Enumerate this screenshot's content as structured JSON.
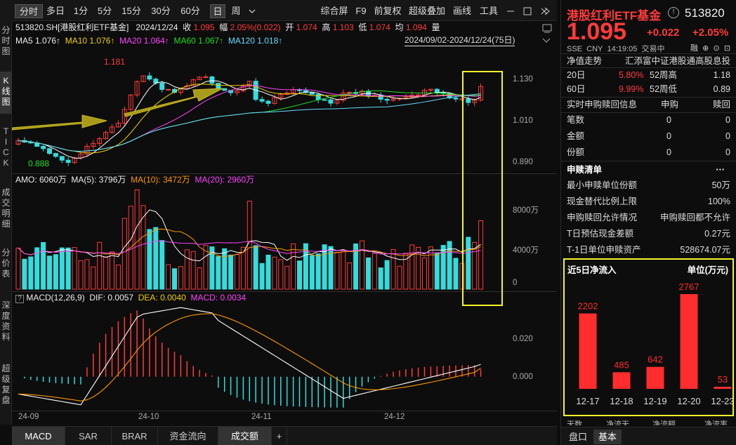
{
  "left_nav": [
    {
      "label": "分\n时\n图",
      "active": false
    },
    {
      "label": "K\n线\n图",
      "active": true
    },
    {
      "label": "T\nI\nC\nK",
      "active": false
    },
    {
      "label": "成\n交\n明\n细",
      "active": false
    },
    {
      "label": "分\n价\n表",
      "active": false
    },
    {
      "label": "深\n度\n资\n料",
      "active": false
    },
    {
      "label": "超\n级\n复\n盘",
      "active": false
    }
  ],
  "toolbar": {
    "periods": [
      "分时",
      "多日",
      "1分",
      "5分",
      "15分",
      "30分",
      "60分",
      "日",
      "周"
    ],
    "selected_period": "日",
    "more_icon": "chevron-down-icon",
    "actions": [
      "综合屏",
      "F9",
      "前复权",
      "超级叠加",
      "画线",
      "工具"
    ],
    "window_buttons": [
      "minimize",
      "restore",
      "close",
      "next"
    ]
  },
  "info_line": {
    "code_name": "513820.SH[港股红利ETF基金]",
    "date": "2024/12/24",
    "close_label": "收",
    "close": "1.095",
    "change_label": "幅",
    "change": "2.05%(0.022)",
    "open_label": "开",
    "open": "1.074",
    "high_label": "高",
    "high": "1.103",
    "low_label": "低",
    "low": "1.074",
    "avg_label": "均",
    "avg": "1.094",
    "vol_label": "量"
  },
  "ma_line": {
    "ma5": "MA5 1.076↑",
    "ma10": "MA10 1.076↑",
    "ma20": "MA20 1.064↑",
    "ma60": "MA60 1.067↑",
    "ma120": "MA120 1.018↑",
    "range": "2024/09/02-2024/12/24(75日)"
  },
  "price_axis": [
    "1.130",
    "1.010",
    "0.890"
  ],
  "price_annotations": {
    "high": "1.181",
    "low": "0.888"
  },
  "volume_header": {
    "amo": "AMO: 6060万",
    "ma5": "MA(5): 3796万",
    "ma10": "MA(10): 3472万",
    "ma20": "MA(20): 2960万"
  },
  "volume_axis": [
    "8000万",
    "4000万",
    "0"
  ],
  "macd_header": {
    "help": "?",
    "name": "MACD(12,26,9)",
    "dif": "DIF: 0.0057",
    "dea": "DEA: 0.0040",
    "macd": "MACD: 0.0034"
  },
  "macd_axis": [
    "0.020",
    "0.000"
  ],
  "x_axis": [
    "24-09",
    "24-10",
    "24-11",
    "24-12"
  ],
  "bottom_tabs": [
    "MACD",
    "SAR",
    "BRAR",
    "资金流向",
    "成交额",
    "+"
  ],
  "bottom_selected": "成交额",
  "right_panel": {
    "title": "港股红利ETF基金",
    "code": "513820",
    "price": "1.095",
    "change": "+0.022",
    "change_pct": "+2.05%",
    "meta": [
      "SSE",
      "CNY",
      "14:19:05",
      "交易中"
    ],
    "side_icons": [
      "融",
      "⊕",
      "⊙",
      "⊡"
    ],
    "nav_label": "净值走势",
    "nav_value": "汇添富中证港股通高股息投",
    "returns": [
      {
        "label": "20日",
        "value": "5.80%",
        "label2": "52周高",
        "value2": "1.18"
      },
      {
        "label": "60日",
        "value": "9.99%",
        "label2": "52周低",
        "value2": "0.89"
      }
    ],
    "realtime_header": {
      "label": "实时申购赎回信息",
      "col1": "申购",
      "col2": "赎回"
    },
    "realtime_rows": [
      {
        "label": "笔数",
        "v1": "0",
        "v2": "0"
      },
      {
        "label": "金额",
        "v1": "0",
        "v2": "0"
      },
      {
        "label": "份额",
        "v1": "0",
        "v2": "0"
      }
    ],
    "list_header": "申赎清单",
    "list_more": "···",
    "list_rows": [
      {
        "label": "最小申赎单位份额",
        "value": "50万"
      },
      {
        "label": "现金替代比例上限",
        "value": "100%"
      },
      {
        "label": "申购赎回允许情况",
        "value": "申购赎回都不允许"
      },
      {
        "label": "T日预估现金差额",
        "value": "0.27元"
      },
      {
        "label": "T-1日单位申赎资产",
        "value": "528674.07元"
      }
    ],
    "flow_title": "近5日净流入",
    "flow_unit": "单位(万元)",
    "footer_labels": [
      "天数",
      "净流天",
      "净流额",
      "净流率"
    ],
    "tabs": [
      "盘口",
      "基本"
    ]
  },
  "chart_data": [
    {
      "type": "bar",
      "title": "近5日净流入",
      "ylabel": "单位(万元)",
      "categories": [
        "12-17",
        "12-18",
        "12-19",
        "12-20",
        "12-23"
      ],
      "values": [
        2202,
        485,
        642,
        2767,
        53
      ],
      "color": "#ff2d2d"
    },
    {
      "type": "candlestick",
      "x": [
        "24-09",
        "24-10",
        "24-11",
        "24-12"
      ],
      "range": "2024/09/02-2024/12/24(75日)",
      "y_ticks": [
        1.13,
        1.01,
        0.89
      ],
      "ylim": [
        0.87,
        1.2
      ],
      "high_annotation": 1.181,
      "low_annotation": 0.888,
      "last_close": 1.095,
      "series_names": [
        "MA5",
        "MA10",
        "MA20",
        "MA60",
        "MA120"
      ],
      "colors": {
        "up": "#ff3b3b",
        "down": "#33dddd",
        "ma5": "#ffffff",
        "ma10": "#f0d000",
        "ma20": "#ff44ff",
        "ma60": "#22dd22",
        "ma120": "#66ddff"
      }
    },
    {
      "type": "bar",
      "title": "AMO",
      "y_ticks": [
        "8000万",
        "4000万",
        "0"
      ],
      "ylim": [
        0,
        9200
      ]
    },
    {
      "type": "bar",
      "title": "MACD(12,26,9)",
      "y_ticks": [
        0.02,
        0.0
      ],
      "ylim": [
        -0.016,
        0.034
      ]
    }
  ]
}
